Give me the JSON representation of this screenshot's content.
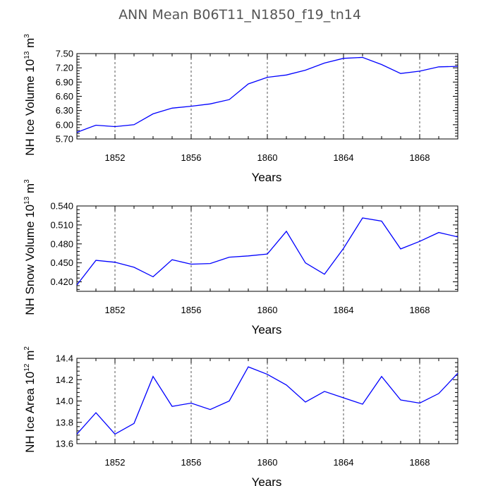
{
  "title": "ANN Mean  B06T11_N1850_f19_tn14",
  "chart_data": [
    {
      "type": "line",
      "ylabel": {
        "main": "NH Ice Volume 10",
        "exp": "13",
        "unit": " m",
        "unit_exp": "3"
      },
      "xlabel": "Years",
      "xlim": [
        1850,
        1870
      ],
      "ylim": [
        5.7,
        7.5
      ],
      "xticks": [
        1852,
        1856,
        1860,
        1864,
        1868
      ],
      "yticks": [
        "5.70",
        "6.00",
        "6.30",
        "6.60",
        "6.90",
        "7.20",
        "7.50"
      ],
      "x_gridlines": true,
      "color": "#0000ff",
      "x": [
        1850,
        1851,
        1852,
        1853,
        1854,
        1855,
        1856,
        1857,
        1858,
        1859,
        1860,
        1861,
        1862,
        1863,
        1864,
        1865,
        1866,
        1867,
        1868,
        1869,
        1870
      ],
      "y": [
        5.84,
        5.99,
        5.96,
        6.0,
        6.23,
        6.35,
        6.39,
        6.44,
        6.53,
        6.86,
        7.0,
        7.05,
        7.15,
        7.3,
        7.4,
        7.42,
        7.27,
        7.08,
        7.13,
        7.22,
        7.23
      ]
    },
    {
      "type": "line",
      "ylabel": {
        "main": "NH Snow Volume 10",
        "exp": "13",
        "unit": " m",
        "unit_exp": "3"
      },
      "xlabel": "Years",
      "xlim": [
        1850,
        1870
      ],
      "ylim": [
        0.405,
        0.54
      ],
      "xticks": [
        1852,
        1856,
        1860,
        1864,
        1868
      ],
      "yticks": [
        "0.420",
        "0.450",
        "0.480",
        "0.510",
        "0.540"
      ],
      "x_gridlines": true,
      "color": "#0000ff",
      "x": [
        1850,
        1851,
        1852,
        1853,
        1854,
        1855,
        1856,
        1857,
        1858,
        1859,
        1860,
        1861,
        1862,
        1863,
        1864,
        1865,
        1866,
        1867,
        1868,
        1869,
        1870
      ],
      "y": [
        0.415,
        0.454,
        0.451,
        0.443,
        0.428,
        0.455,
        0.448,
        0.449,
        0.459,
        0.461,
        0.464,
        0.5,
        0.45,
        0.432,
        0.473,
        0.521,
        0.516,
        0.472,
        0.484,
        0.498,
        0.491
      ]
    },
    {
      "type": "line",
      "ylabel": {
        "main": "NH Ice Area 10",
        "exp": "12",
        "unit": " m",
        "unit_exp": "2"
      },
      "xlabel": "Years",
      "xlim": [
        1850,
        1870
      ],
      "ylim": [
        13.6,
        14.4
      ],
      "xticks": [
        1852,
        1856,
        1860,
        1864,
        1868
      ],
      "yticks": [
        "13.6",
        "13.8",
        "14.0",
        "14.2",
        "14.4"
      ],
      "x_gridlines": true,
      "color": "#0000ff",
      "x": [
        1850,
        1851,
        1852,
        1853,
        1854,
        1855,
        1856,
        1857,
        1858,
        1859,
        1860,
        1861,
        1862,
        1863,
        1864,
        1865,
        1866,
        1867,
        1868,
        1869,
        1870
      ],
      "y": [
        13.69,
        13.89,
        13.69,
        13.79,
        14.23,
        13.95,
        13.98,
        13.92,
        14.0,
        14.32,
        14.25,
        14.15,
        13.99,
        14.09,
        14.03,
        13.97,
        14.23,
        14.01,
        13.98,
        14.07,
        14.26
      ]
    }
  ]
}
